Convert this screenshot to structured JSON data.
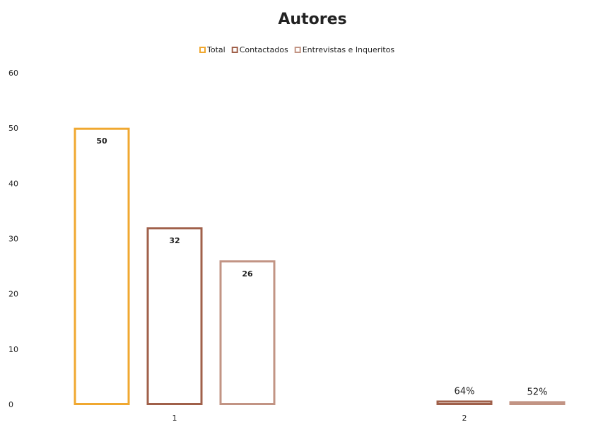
{
  "chart_data": {
    "type": "bar",
    "title": "Autores",
    "categories": [
      "1",
      "2"
    ],
    "series": [
      {
        "name": "Total",
        "color": "#f0a830",
        "values": [
          50,
          null
        ],
        "value_labels": [
          "50",
          null
        ]
      },
      {
        "name": "Contactados",
        "color": "#a0604a",
        "values": [
          32,
          0.64
        ],
        "value_labels": [
          "32",
          "64%"
        ]
      },
      {
        "name": "Entrevistas e Inqueritos",
        "color": "#c29484",
        "values": [
          26,
          0.52
        ],
        "value_labels": [
          "26",
          "52%"
        ]
      }
    ],
    "ylim": [
      0,
      60
    ],
    "yticks": [
      0,
      10,
      20,
      30,
      40,
      50,
      60
    ],
    "grid": false,
    "legend": "top"
  }
}
